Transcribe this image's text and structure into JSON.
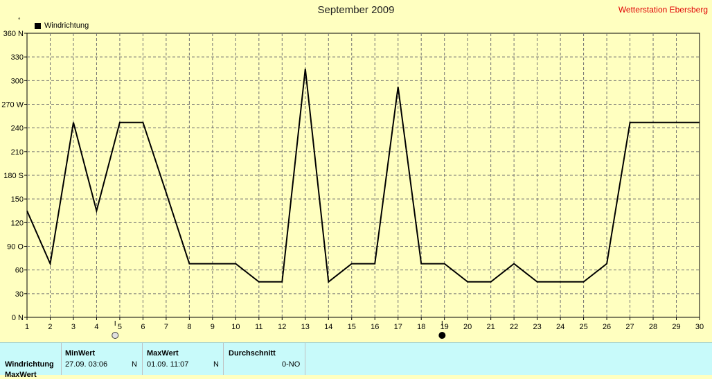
{
  "header": {
    "title": "September 2009",
    "station": "Wetterstation Ebersberg",
    "unit_mark": "°"
  },
  "legend": {
    "label": "Windrichtung"
  },
  "chart_data": {
    "type": "line",
    "title": "September 2009",
    "series": [
      {
        "name": "Windrichtung",
        "x": [
          1,
          2,
          3,
          4,
          5,
          6,
          7,
          8,
          9,
          10,
          11,
          12,
          13,
          14,
          15,
          16,
          17,
          18,
          19,
          20,
          21,
          22,
          23,
          24,
          25,
          26,
          27,
          28,
          29,
          30
        ],
        "values": [
          135,
          68,
          247,
          135,
          247,
          247,
          158,
          68,
          68,
          68,
          45,
          45,
          315,
          45,
          68,
          68,
          292,
          68,
          68,
          45,
          45,
          68,
          45,
          45,
          45,
          68,
          247,
          247,
          247,
          247
        ],
        "color": "#000000"
      }
    ],
    "xlim": [
      1,
      30
    ],
    "ylim": [
      0,
      360
    ],
    "x_ticks": [
      "1",
      "2",
      "3",
      "4",
      "5",
      "6",
      "7",
      "8",
      "9",
      "10",
      "11",
      "12",
      "13",
      "14",
      "15",
      "16",
      "17",
      "18",
      "19",
      "20",
      "21",
      "22",
      "23",
      "24",
      "25",
      "26",
      "27",
      "28",
      "29",
      "30"
    ],
    "y_ticks": [
      {
        "value": 0,
        "label": "0 N"
      },
      {
        "value": 30,
        "label": "30"
      },
      {
        "value": 60,
        "label": "60"
      },
      {
        "value": 90,
        "label": "90 O"
      },
      {
        "value": 120,
        "label": "120"
      },
      {
        "value": 150,
        "label": "150"
      },
      {
        "value": 180,
        "label": "180 S"
      },
      {
        "value": 210,
        "label": "210"
      },
      {
        "value": 240,
        "label": "240"
      },
      {
        "value": 270,
        "label": "270 W"
      },
      {
        "value": 300,
        "label": "300"
      },
      {
        "value": 330,
        "label": "330"
      },
      {
        "value": 360,
        "label": "360 N"
      }
    ],
    "grid": true,
    "legend_position": "top-left",
    "moon_phases": [
      {
        "day": 4.8,
        "phase": "full-moon"
      },
      {
        "day": 18.9,
        "phase": "new-moon"
      }
    ]
  },
  "summary": {
    "row_label": "Windrichtung",
    "row_label_2": "MaxWert",
    "min_header": "MinWert",
    "min_time": "27.09.  03:06",
    "min_dir": "N",
    "max_header": "MaxWert",
    "max_time": "01.09.  11:07",
    "max_dir": "N",
    "avg_header": "Durchschnitt",
    "avg_value": "0-NO"
  }
}
